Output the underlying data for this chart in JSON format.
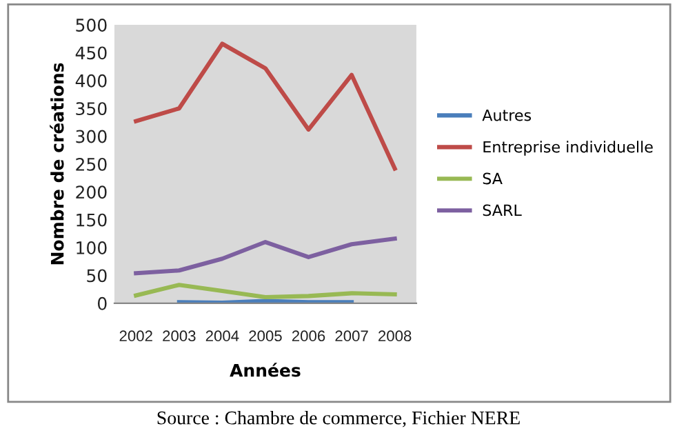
{
  "chart_data": {
    "type": "line",
    "xlabel": "Années",
    "ylabel": "Nombre de créations",
    "categories": [
      "2002",
      "2003",
      "2004",
      "2005",
      "2006",
      "2007",
      "2008"
    ],
    "series": [
      {
        "name": "Autres",
        "color": "#4a7ebb",
        "values": [
          null,
          2,
          1,
          4,
          2,
          2,
          null
        ]
      },
      {
        "name": "Entreprise individuelle",
        "color": "#be4b48",
        "values": [
          327,
          350,
          466,
          422,
          312,
          410,
          242
        ]
      },
      {
        "name": "SA",
        "color": "#98b954",
        "values": [
          14,
          33,
          22,
          11,
          13,
          18,
          16
        ]
      },
      {
        "name": "SARL",
        "color": "#7d60a0",
        "values": [
          54,
          59,
          80,
          110,
          83,
          106,
          116
        ]
      }
    ],
    "ylim": [
      0,
      500
    ],
    "yticks": [
      0,
      50,
      100,
      150,
      200,
      250,
      300,
      350,
      400,
      450,
      500
    ],
    "grid": false,
    "legend": "right",
    "marker": "none",
    "line_style": "solid",
    "annotations": [
      "Source : Chambre de commerce, Fichier NERE"
    ]
  }
}
